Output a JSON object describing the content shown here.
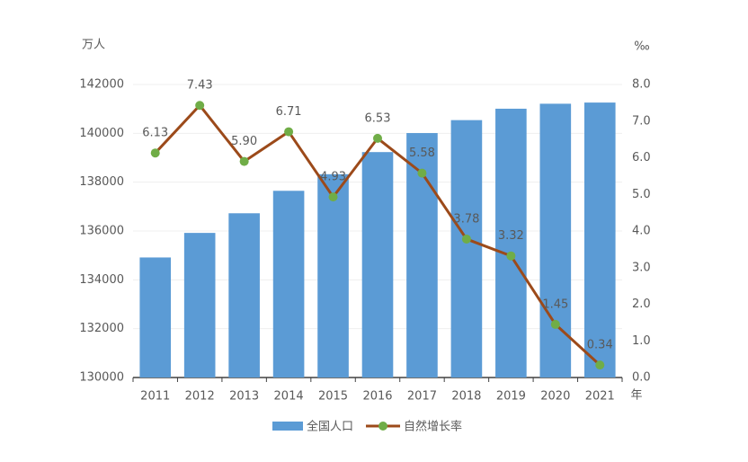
{
  "chart_data": {
    "type": "bar-line",
    "y_label": "万人",
    "y2_label": "‰",
    "x_label": "年",
    "categories": [
      "2011",
      "2012",
      "2013",
      "2014",
      "2015",
      "2016",
      "2017",
      "2018",
      "2019",
      "2020",
      "2021"
    ],
    "series": [
      {
        "name": "全国人口",
        "type": "bar",
        "color": "#5b9bd5",
        "values": [
          134916,
          135922,
          136726,
          137646,
          138326,
          139232,
          140011,
          140541,
          141008,
          141212,
          141260
        ]
      },
      {
        "name": "自然增长率",
        "type": "line",
        "axis": "y2",
        "color": "#9c4a1a",
        "marker_color": "#70ad47",
        "values": [
          6.13,
          7.43,
          5.9,
          6.71,
          4.93,
          6.53,
          5.58,
          3.78,
          3.32,
          1.45,
          0.34
        ],
        "value_labels": [
          "6.13",
          "7.43",
          "5.90",
          "6.71",
          "4.93",
          "6.53",
          "5.58",
          "3.78",
          "3.32",
          "1.45",
          "0.34"
        ]
      }
    ],
    "ylim": [
      130000,
      142000
    ],
    "yticks": [
      130000,
      132000,
      134000,
      136000,
      138000,
      140000,
      142000
    ],
    "y2lim": [
      0,
      8
    ],
    "y2ticks": [
      {
        "value": 0,
        "label": "0.0"
      },
      {
        "value": 1,
        "label": "1.0"
      },
      {
        "value": 2,
        "label": "2.0"
      },
      {
        "value": 3,
        "label": "3.0"
      },
      {
        "value": 4,
        "label": "4.0"
      },
      {
        "value": 5,
        "label": "5.0"
      },
      {
        "value": 6,
        "label": "6.0"
      },
      {
        "value": 7,
        "label": "7.0"
      },
      {
        "value": 8,
        "label": "8.0"
      }
    ],
    "grid": true
  }
}
